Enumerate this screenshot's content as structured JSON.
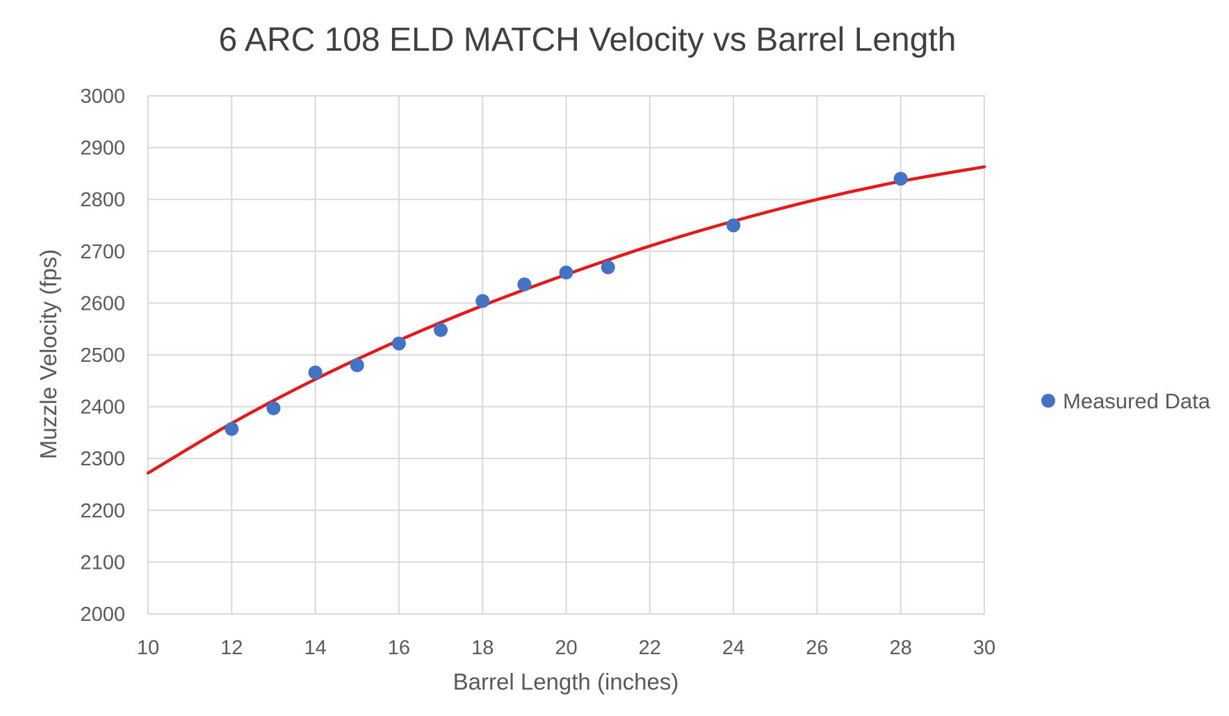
{
  "chart_data": {
    "type": "scatter",
    "title": "6 ARC 108 ELD MATCH Velocity vs Barrel Length",
    "xlabel": "Barrel Length (inches)",
    "ylabel": "Muzzle Velocity (fps)",
    "xlim": [
      10,
      30
    ],
    "ylim": [
      2000,
      3000
    ],
    "x_ticks": [
      "10",
      "12",
      "14",
      "16",
      "18",
      "20",
      "22",
      "24",
      "26",
      "28",
      "30"
    ],
    "y_ticks": [
      "2000",
      "2100",
      "2200",
      "2300",
      "2400",
      "2500",
      "2600",
      "2700",
      "2800",
      "2900",
      "3000"
    ],
    "grid": true,
    "legend_position": "right",
    "series": [
      {
        "name": "Measured Data",
        "color": "#4472c4",
        "marker": "circle",
        "x": [
          12,
          13,
          14,
          15,
          16,
          17,
          18,
          19,
          20,
          21,
          24,
          28
        ],
        "y": [
          2357,
          2397,
          2466,
          2480,
          2522,
          2548,
          2604,
          2636,
          2659,
          2669,
          2750,
          2840
        ]
      }
    ],
    "trendline": {
      "type": "polynomial",
      "color": "#e31a1c",
      "x": [
        10,
        12,
        14,
        16,
        18,
        20,
        22,
        24,
        26,
        28,
        30
      ],
      "y": [
        2272,
        2368,
        2453,
        2528,
        2595,
        2655,
        2710,
        2758,
        2800,
        2835,
        2863
      ]
    }
  }
}
